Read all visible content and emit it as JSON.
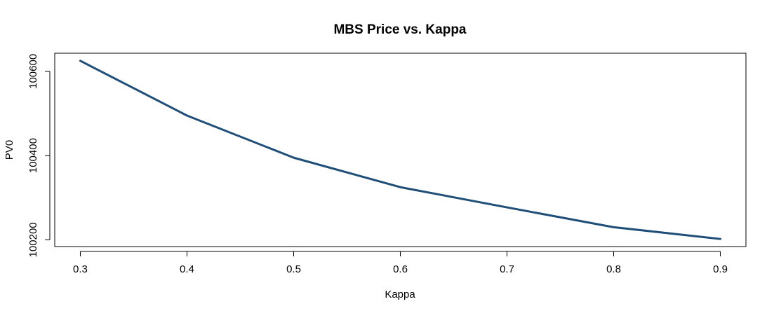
{
  "chart_data": {
    "type": "line",
    "title": "MBS Price vs. Kappa",
    "xlabel": "Kappa",
    "ylabel": "PV0",
    "x": [
      0.3,
      0.4,
      0.5,
      0.6,
      0.7,
      0.8,
      0.9
    ],
    "series": [
      {
        "values": [
          100625,
          100495,
          100395,
          100325,
          100277,
          100230,
          100202
        ]
      }
    ],
    "xticks": [
      0.3,
      0.4,
      0.5,
      0.6,
      0.7,
      0.8,
      0.9
    ],
    "xtick_labels": [
      "0.3",
      "0.4",
      "0.5",
      "0.6",
      "0.7",
      "0.8",
      "0.9"
    ],
    "yticks": [
      100200,
      100400,
      100600
    ],
    "ytick_labels": [
      "100200",
      "100400",
      "100600"
    ],
    "xlim": [
      0.276,
      0.924
    ],
    "ylim": [
      100184,
      100643
    ],
    "grid": false,
    "legend": "none",
    "colors": {
      "line": "#1f4e79",
      "axes": "#000000",
      "background": "#ffffff"
    }
  }
}
